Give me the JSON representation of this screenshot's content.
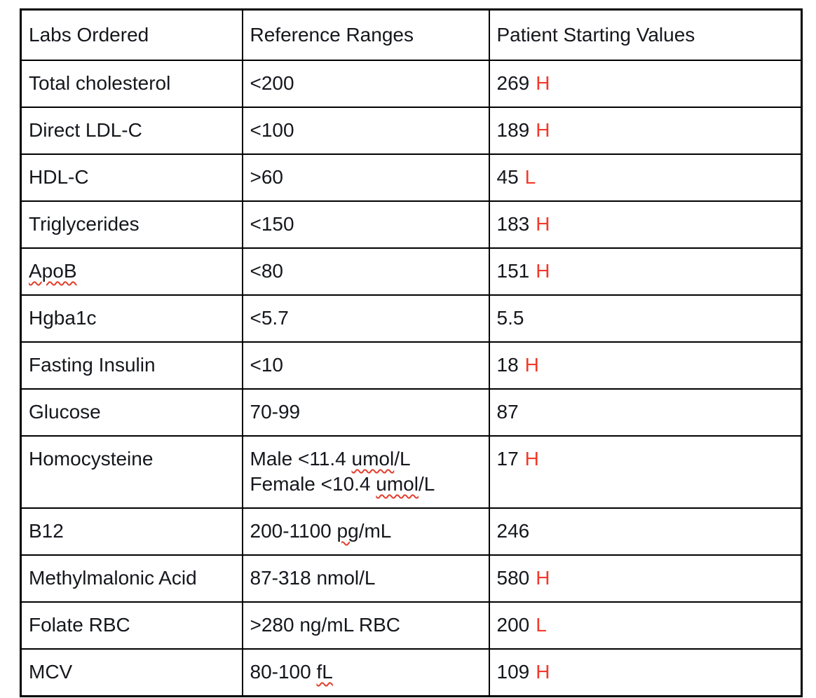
{
  "colors": {
    "text": "#15171d",
    "border": "#000000",
    "flag_red": "#f23a2b",
    "squiggle_red": "#e23e2b",
    "page_background": "#ffffff"
  },
  "table": {
    "headers": [
      "Labs Ordered",
      "Reference Ranges",
      "Patient Starting Values"
    ],
    "rows": [
      {
        "lab": "Total cholesterol",
        "lab_squiggle": false,
        "range_lines": [
          [
            {
              "t": "<200"
            }
          ]
        ],
        "value": "269",
        "flag": "H"
      },
      {
        "lab": "Direct LDL-C",
        "lab_squiggle": false,
        "range_lines": [
          [
            {
              "t": "<100"
            }
          ]
        ],
        "value": "189",
        "flag": "H"
      },
      {
        "lab": "HDL-C",
        "lab_squiggle": false,
        "range_lines": [
          [
            {
              "t": ">60"
            }
          ]
        ],
        "value": "45",
        "flag": "L"
      },
      {
        "lab": "Triglycerides",
        "lab_squiggle": false,
        "range_lines": [
          [
            {
              "t": "<150"
            }
          ]
        ],
        "value": "183",
        "flag": "H"
      },
      {
        "lab": "ApoB",
        "lab_squiggle": true,
        "range_lines": [
          [
            {
              "t": "<80"
            }
          ]
        ],
        "value": "151",
        "flag": "H"
      },
      {
        "lab": "Hgba1c",
        "lab_squiggle": false,
        "range_lines": [
          [
            {
              "t": "<5.7"
            }
          ]
        ],
        "value": "5.5",
        "flag": null
      },
      {
        "lab": "Fasting Insulin",
        "lab_squiggle": false,
        "range_lines": [
          [
            {
              "t": "<10"
            }
          ]
        ],
        "value": "18",
        "flag": "H"
      },
      {
        "lab": "Glucose",
        "lab_squiggle": false,
        "range_lines": [
          [
            {
              "t": "70-99"
            }
          ]
        ],
        "value": "87",
        "flag": null
      },
      {
        "lab": "Homocysteine",
        "lab_squiggle": false,
        "range_lines": [
          [
            {
              "t": "Male <11.4 "
            },
            {
              "t": "umol",
              "sq": true
            },
            {
              "t": "/L"
            }
          ],
          [
            {
              "t": "Female <10.4 "
            },
            {
              "t": "umol",
              "sq": true
            },
            {
              "t": "/L"
            }
          ]
        ],
        "value": "17",
        "flag": "H"
      },
      {
        "lab": "B12",
        "lab_squiggle": false,
        "range_lines": [
          [
            {
              "t": "200-1100 "
            },
            {
              "t": "pg",
              "sq": true
            },
            {
              "t": "/mL"
            }
          ]
        ],
        "value": "246",
        "flag": null
      },
      {
        "lab": "Methylmalonic Acid",
        "lab_squiggle": false,
        "range_lines": [
          [
            {
              "t": "87-318 nmol/L"
            }
          ]
        ],
        "value": "580",
        "flag": "H"
      },
      {
        "lab": "Folate RBC",
        "lab_squiggle": false,
        "range_lines": [
          [
            {
              "t": ">280 ng/mL RBC"
            }
          ]
        ],
        "value": "200",
        "flag": "L"
      },
      {
        "lab": "MCV",
        "lab_squiggle": false,
        "range_lines": [
          [
            {
              "t": "80-100 "
            },
            {
              "t": "fL",
              "sq": true
            }
          ]
        ],
        "value": "109",
        "flag": "H"
      }
    ]
  }
}
